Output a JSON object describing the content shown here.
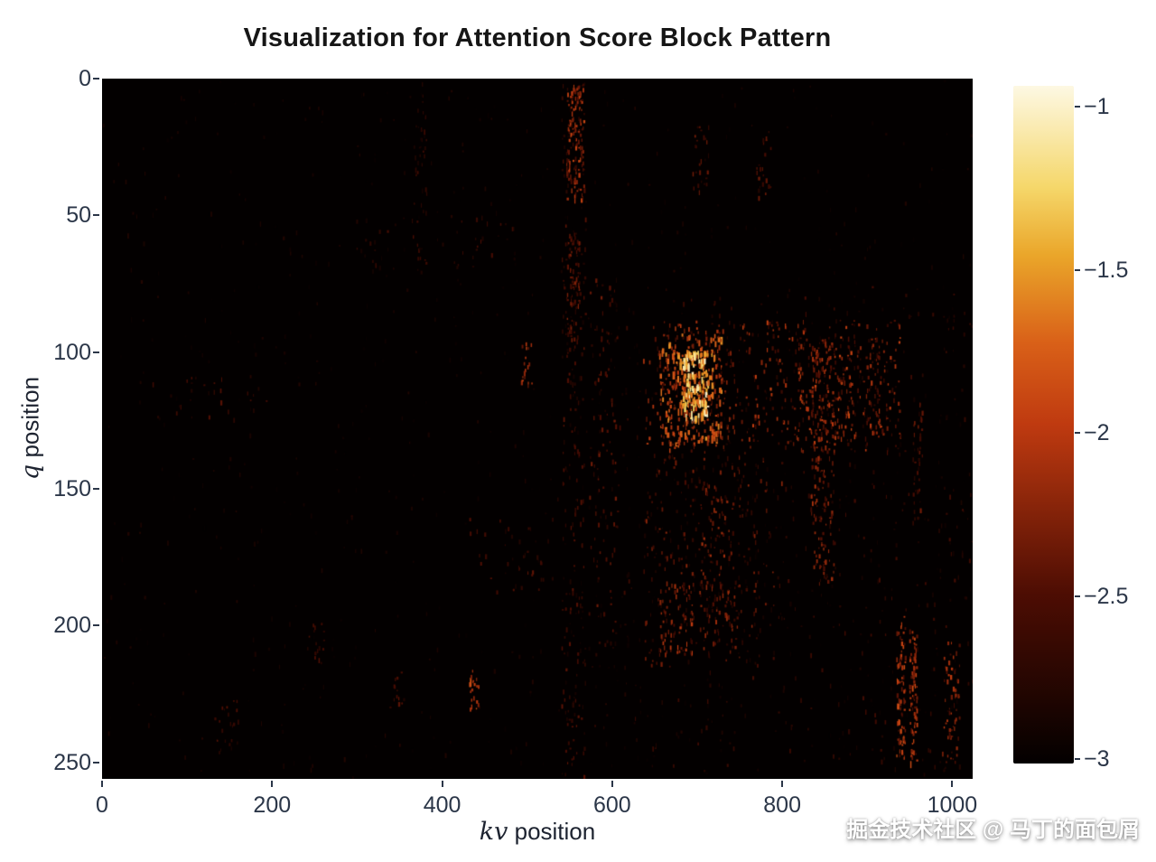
{
  "chart_data": {
    "type": "heatmap",
    "title": "Visualization for Attention Score Block Pattern",
    "xlabel_math": "kv",
    "xlabel_text": " position",
    "ylabel_math": "q",
    "ylabel_text": " position",
    "x_range": [
      0,
      1024
    ],
    "y_range": [
      0,
      256
    ],
    "x_ticks": [
      0,
      200,
      400,
      600,
      800,
      1000
    ],
    "y_ticks": [
      0,
      50,
      100,
      150,
      200,
      250
    ],
    "value_range": [
      -3,
      -1
    ],
    "background_value": -3,
    "colorbar_tick_labels": [
      "−1",
      "−1.5",
      "−2",
      "−2.5",
      "−3"
    ],
    "colorbar_tick_values": [
      -1,
      -1.5,
      -2,
      -2.5,
      -3
    ],
    "colormap_stops": [
      {
        "t": 0.0,
        "c": "#030000"
      },
      {
        "t": 0.25,
        "c": "#4d0d03"
      },
      {
        "t": 0.5,
        "c": "#bf3a10"
      },
      {
        "t": 0.62,
        "c": "#d96018"
      },
      {
        "t": 0.75,
        "c": "#eaa62a"
      },
      {
        "t": 0.85,
        "c": "#f5d76a"
      },
      {
        "t": 1.0,
        "c": "#fdf8e3"
      }
    ],
    "seed": 42,
    "regions": [
      {
        "x0": 0,
        "x1": 1024,
        "y0": 0,
        "y1": 256,
        "count": 750,
        "vmin": -2.98,
        "vmax": -2.78
      },
      {
        "x0": 560,
        "x1": 1024,
        "y0": 75,
        "y1": 252,
        "count": 520,
        "vmin": -2.95,
        "vmax": -2.55
      },
      {
        "x0": 540,
        "x1": 568,
        "y0": 0,
        "y1": 256,
        "count": 240,
        "vmin": -2.9,
        "vmax": -2.4
      },
      {
        "x0": 546,
        "x1": 566,
        "y0": 2,
        "y1": 44,
        "count": 130,
        "vmin": -2.6,
        "vmax": -1.9
      },
      {
        "x0": 546,
        "x1": 562,
        "y0": 54,
        "y1": 96,
        "count": 70,
        "vmin": -2.75,
        "vmax": -2.25
      },
      {
        "x0": 366,
        "x1": 382,
        "y0": 0,
        "y1": 72,
        "count": 45,
        "vmin": -2.9,
        "vmax": -2.55
      },
      {
        "x0": 295,
        "x1": 485,
        "y0": 50,
        "y1": 70,
        "count": 40,
        "vmin": -2.9,
        "vmax": -2.5
      },
      {
        "x0": 573,
        "x1": 606,
        "y0": 72,
        "y1": 208,
        "count": 95,
        "vmin": -2.85,
        "vmax": -2.3
      },
      {
        "x0": 655,
        "x1": 728,
        "y0": 93,
        "y1": 133,
        "count": 270,
        "vmin": -2.35,
        "vmax": -1.55
      },
      {
        "x0": 683,
        "x1": 712,
        "y0": 99,
        "y1": 124,
        "count": 150,
        "vmin": -1.8,
        "vmax": -1.05
      },
      {
        "x0": 636,
        "x1": 940,
        "y0": 88,
        "y1": 136,
        "count": 430,
        "vmin": -2.75,
        "vmax": -1.95
      },
      {
        "x0": 818,
        "x1": 882,
        "y0": 98,
        "y1": 132,
        "count": 95,
        "vmin": -2.5,
        "vmax": -1.9
      },
      {
        "x0": 843,
        "x1": 862,
        "y0": 95,
        "y1": 186,
        "count": 110,
        "vmin": -2.7,
        "vmax": -2.1
      },
      {
        "x0": 833,
        "x1": 843,
        "y0": 97,
        "y1": 178,
        "count": 75,
        "vmin": -2.65,
        "vmax": -2.05
      },
      {
        "x0": 636,
        "x1": 800,
        "y0": 136,
        "y1": 214,
        "count": 260,
        "vmin": -2.85,
        "vmax": -2.2
      },
      {
        "x0": 700,
        "x1": 742,
        "y0": 148,
        "y1": 206,
        "count": 90,
        "vmin": -2.7,
        "vmax": -2.1
      },
      {
        "x0": 655,
        "x1": 694,
        "y0": 184,
        "y1": 210,
        "count": 65,
        "vmin": -2.6,
        "vmax": -2.0
      },
      {
        "x0": 934,
        "x1": 944,
        "y0": 196,
        "y1": 248,
        "count": 85,
        "vmin": -2.5,
        "vmax": -1.85
      },
      {
        "x0": 949,
        "x1": 958,
        "y0": 200,
        "y1": 250,
        "count": 80,
        "vmin": -2.5,
        "vmax": -1.85
      },
      {
        "x0": 953,
        "x1": 965,
        "y0": 118,
        "y1": 162,
        "count": 40,
        "vmin": -2.8,
        "vmax": -2.3
      },
      {
        "x0": 898,
        "x1": 914,
        "y0": 94,
        "y1": 132,
        "count": 40,
        "vmin": -2.7,
        "vmax": -2.2
      },
      {
        "x0": 988,
        "x1": 1008,
        "y0": 203,
        "y1": 250,
        "count": 60,
        "vmin": -2.6,
        "vmax": -2.0
      },
      {
        "x0": 58,
        "x1": 200,
        "y0": 108,
        "y1": 126,
        "count": 28,
        "vmin": -2.85,
        "vmax": -2.45
      },
      {
        "x0": 128,
        "x1": 168,
        "y0": 226,
        "y1": 246,
        "count": 22,
        "vmin": -2.8,
        "vmax": -2.4
      },
      {
        "x0": 243,
        "x1": 262,
        "y0": 196,
        "y1": 214,
        "count": 16,
        "vmin": -2.8,
        "vmax": -2.45
      },
      {
        "x0": 338,
        "x1": 354,
        "y0": 216,
        "y1": 230,
        "count": 12,
        "vmin": -2.75,
        "vmax": -2.35
      },
      {
        "x0": 430,
        "x1": 443,
        "y0": 216,
        "y1": 232,
        "count": 20,
        "vmin": -2.35,
        "vmax": -1.85
      },
      {
        "x0": 492,
        "x1": 505,
        "y0": 96,
        "y1": 112,
        "count": 18,
        "vmin": -2.4,
        "vmax": -1.95
      },
      {
        "x0": 430,
        "x1": 532,
        "y0": 160,
        "y1": 188,
        "count": 40,
        "vmin": -2.85,
        "vmax": -2.4
      },
      {
        "x0": 694,
        "x1": 714,
        "y0": 16,
        "y1": 42,
        "count": 26,
        "vmin": -2.8,
        "vmax": -2.3
      },
      {
        "x0": 768,
        "x1": 792,
        "y0": 18,
        "y1": 44,
        "count": 22,
        "vmin": -2.85,
        "vmax": -2.35
      }
    ]
  },
  "watermark": {
    "text": "掘金技术社区 @ 马丁的面包屑"
  }
}
